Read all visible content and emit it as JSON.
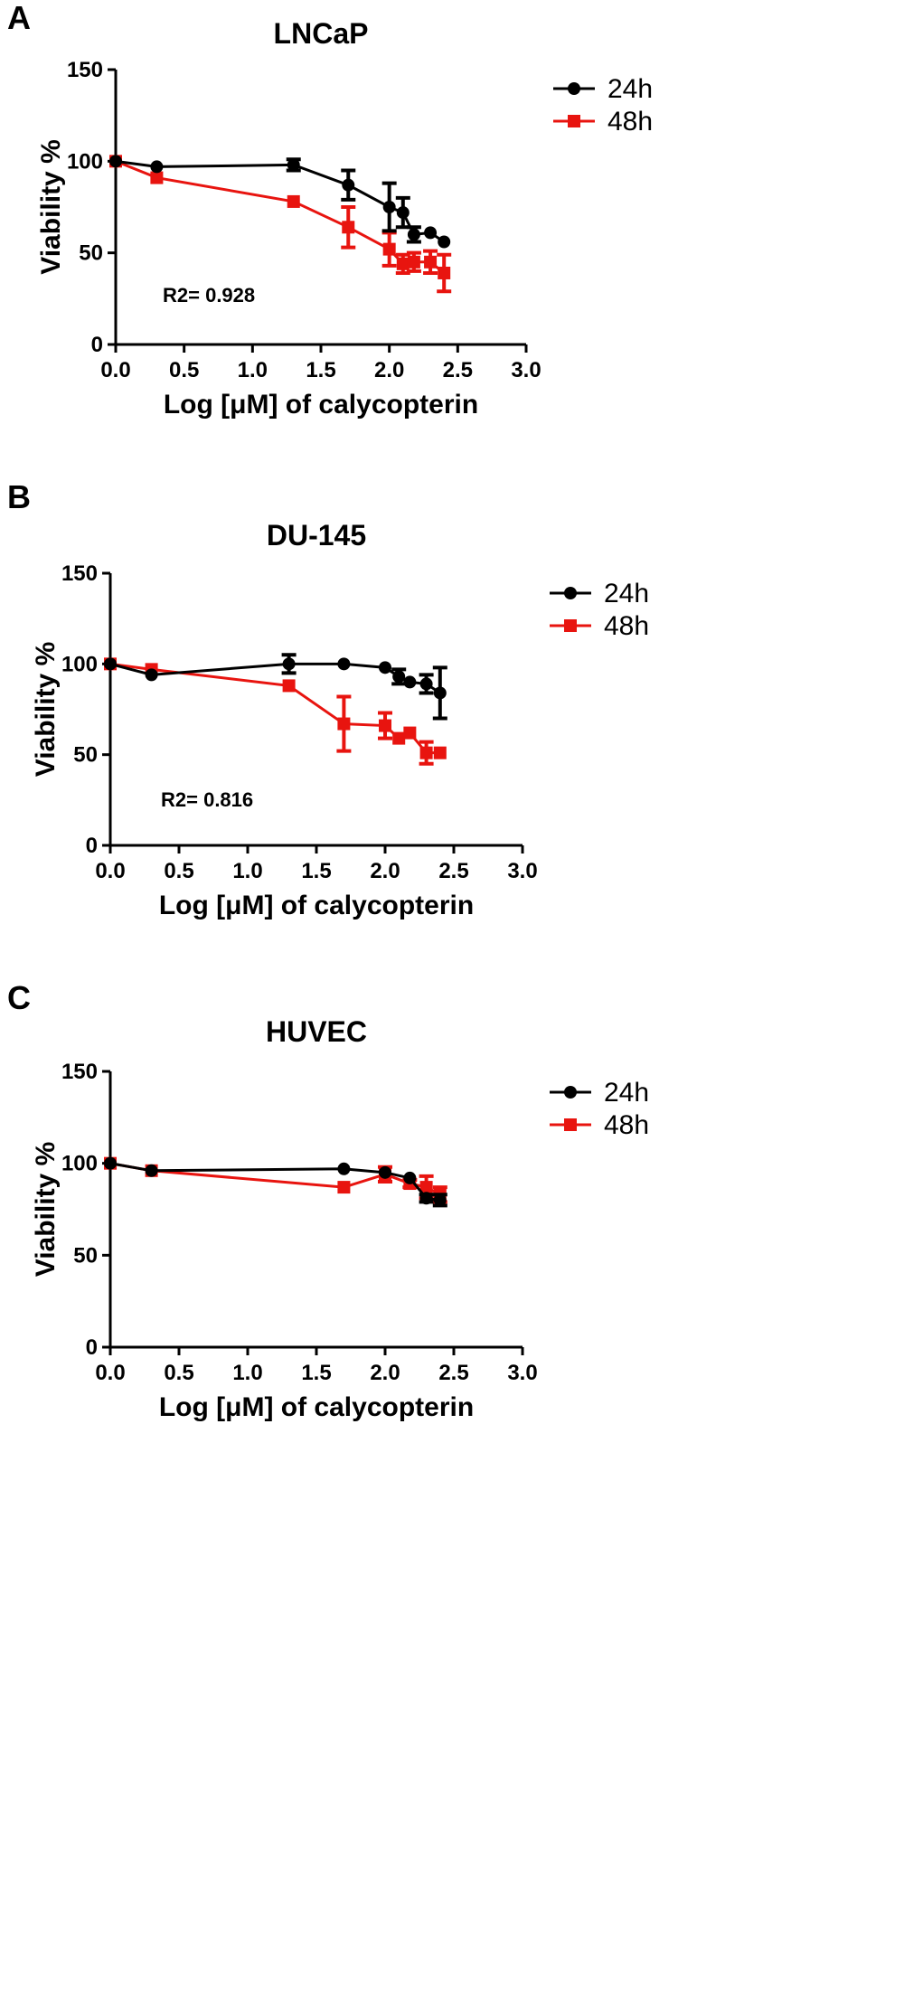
{
  "colors": {
    "24h": "#000000",
    "48h": "#e8140f",
    "axis": "#000000"
  },
  "chart_data": [
    {
      "type": "line",
      "panel": "A",
      "title": "LNCaP",
      "xlabel": "Log [μM] of calycopterin",
      "ylabel": "Viability %",
      "xlim": [
        0,
        3
      ],
      "ylim": [
        0,
        150
      ],
      "xticks": [
        "0.0",
        "0.5",
        "1.0",
        "1.5",
        "2.0",
        "2.5",
        "3.0"
      ],
      "yticks": [
        "0",
        "50",
        "100",
        "150"
      ],
      "annotation": "R2= 0.928",
      "legend": "right",
      "series": [
        {
          "name": "24h",
          "marker": "circle",
          "x": [
            0,
            0.3,
            1.3,
            1.7,
            2.0,
            2.1,
            2.18,
            2.3,
            2.4
          ],
          "y": [
            100,
            97,
            98,
            87,
            75,
            72,
            60,
            61,
            56
          ],
          "err": [
            0,
            0,
            3,
            8,
            13,
            8,
            4,
            0,
            0
          ]
        },
        {
          "name": "48h",
          "marker": "square",
          "x": [
            0,
            0.3,
            1.3,
            1.7,
            2.0,
            2.1,
            2.18,
            2.3,
            2.4
          ],
          "y": [
            100,
            91,
            78,
            64,
            52,
            44,
            45,
            45,
            39
          ],
          "err": [
            0,
            0,
            0,
            11,
            9,
            5,
            5,
            6,
            10
          ]
        }
      ]
    },
    {
      "type": "line",
      "panel": "B",
      "title": "DU-145",
      "xlabel": "Log [μM] of calycopterin",
      "ylabel": "Viability %",
      "xlim": [
        0,
        3
      ],
      "ylim": [
        0,
        150
      ],
      "xticks": [
        "0.0",
        "0.5",
        "1.0",
        "1.5",
        "2.0",
        "2.5",
        "3.0"
      ],
      "yticks": [
        "0",
        "50",
        "100",
        "150"
      ],
      "annotation": "R2= 0.816",
      "legend": "right",
      "series": [
        {
          "name": "24h",
          "marker": "circle",
          "x": [
            0,
            0.3,
            1.3,
            1.7,
            2.0,
            2.1,
            2.18,
            2.3,
            2.4
          ],
          "y": [
            100,
            94,
            100,
            100,
            98,
            93,
            90,
            89,
            84
          ],
          "err": [
            0,
            0,
            5,
            0,
            0,
            4,
            0,
            5,
            14
          ]
        },
        {
          "name": "48h",
          "marker": "square",
          "x": [
            0,
            0.3,
            1.3,
            1.7,
            2.0,
            2.1,
            2.18,
            2.3,
            2.4
          ],
          "y": [
            100,
            97,
            88,
            67,
            66,
            59,
            62,
            51,
            51
          ],
          "err": [
            0,
            0,
            0,
            15,
            7,
            0,
            0,
            6,
            0
          ]
        }
      ]
    },
    {
      "type": "line",
      "panel": "C",
      "title": "HUVEC",
      "xlabel": "Log [μM] of calycopterin",
      "ylabel": "Viability %",
      "xlim": [
        0,
        3
      ],
      "ylim": [
        0,
        150
      ],
      "xticks": [
        "0.0",
        "0.5",
        "1.0",
        "1.5",
        "2.0",
        "2.5",
        "3.0"
      ],
      "yticks": [
        "0",
        "50",
        "100",
        "150"
      ],
      "annotation": "",
      "legend": "right",
      "series": [
        {
          "name": "24h",
          "marker": "circle",
          "x": [
            0,
            0.3,
            1.7,
            2.0,
            2.18,
            2.3,
            2.4
          ],
          "y": [
            100,
            96,
            97,
            95,
            92,
            81,
            80
          ],
          "err": [
            0,
            0,
            0,
            0,
            0,
            2,
            3
          ]
        },
        {
          "name": "48h",
          "marker": "square",
          "x": [
            0,
            0.3,
            1.7,
            2.0,
            2.18,
            2.3,
            2.4
          ],
          "y": [
            100,
            96,
            87,
            94,
            89,
            87,
            83
          ],
          "err": [
            0,
            0,
            0,
            4,
            2,
            6,
            4
          ]
        }
      ]
    }
  ]
}
